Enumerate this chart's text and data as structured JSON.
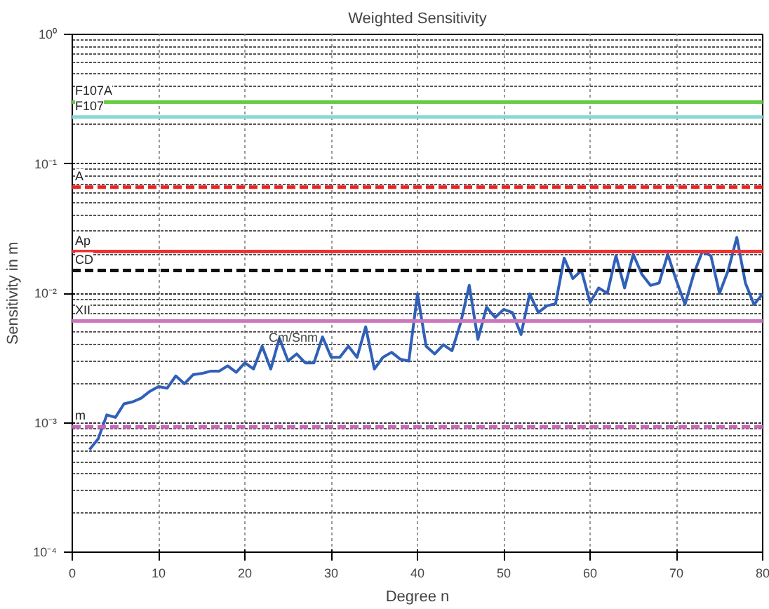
{
  "chart_data": {
    "type": "line",
    "title": "Weighted Sensitivity",
    "xlabel": "Degree n",
    "ylabel": "Sensitivity in m",
    "log": "y",
    "grid": true,
    "xlim": [
      0,
      80
    ],
    "xticks": [
      0,
      10,
      20,
      30,
      40,
      50,
      60,
      70,
      80
    ],
    "ylim": [
      0.0001,
      1
    ],
    "yticks": [
      {
        "value": 0.0001,
        "label": "10⁻⁴"
      },
      {
        "value": 0.001,
        "label": "10⁻³"
      },
      {
        "value": 0.01,
        "label": "10⁻²"
      },
      {
        "value": 0.1,
        "label": "10⁻¹"
      },
      {
        "value": 1,
        "label": "10⁰"
      }
    ],
    "x": [
      2,
      3,
      4,
      5,
      6,
      7,
      8,
      9,
      10,
      11,
      12,
      13,
      14,
      15,
      16,
      17,
      18,
      19,
      20,
      21,
      22,
      23,
      24,
      25,
      26,
      27,
      28,
      29,
      30,
      31,
      32,
      33,
      34,
      35,
      36,
      37,
      38,
      39,
      40,
      41,
      42,
      43,
      44,
      45,
      46,
      47,
      48,
      49,
      50,
      51,
      52,
      53,
      54,
      55,
      56,
      57,
      58,
      59,
      60,
      61,
      62,
      63,
      64,
      65,
      66,
      67,
      68,
      69,
      70,
      71,
      72,
      73,
      74,
      75,
      76,
      77,
      78,
      79,
      80
    ],
    "series": [
      {
        "color": "#3060b8",
        "values": [
          0.00062,
          0.00075,
          0.00115,
          0.0011,
          0.0014,
          0.00145,
          0.00155,
          0.00175,
          0.0019,
          0.00185,
          0.0023,
          0.002,
          0.00235,
          0.0024,
          0.0025,
          0.0025,
          0.00275,
          0.00245,
          0.0029,
          0.0026,
          0.0039,
          0.0026,
          0.0045,
          0.003,
          0.0034,
          0.0029,
          0.0029,
          0.0046,
          0.0032,
          0.0032,
          0.0039,
          0.0032,
          0.0055,
          0.0026,
          0.0032,
          0.0035,
          0.0031,
          0.003,
          0.0099,
          0.0039,
          0.0034,
          0.004,
          0.0036,
          0.0059,
          0.0115,
          0.0044,
          0.0078,
          0.0065,
          0.0075,
          0.0071,
          0.0048,
          0.0099,
          0.0071,
          0.008,
          0.0083,
          0.0187,
          0.013,
          0.015,
          0.0085,
          0.011,
          0.01,
          0.0195,
          0.011,
          0.02,
          0.014,
          0.0115,
          0.012,
          0.02,
          0.0125,
          0.0082,
          0.014,
          0.021,
          0.0195,
          0.01,
          0.015,
          0.027,
          0.012,
          0.0082,
          0.0099
        ]
      }
    ],
    "ref_lines": [
      {
        "axis": "y",
        "value": 0.3,
        "label": "F107A",
        "color": "#66cc44",
        "line_style": "solid"
      },
      {
        "axis": "y",
        "value": 0.23,
        "label": "F107",
        "color": "#88d8d8",
        "line_style": "solid"
      },
      {
        "axis": "y",
        "value": 0.066,
        "label": "A",
        "color": "#ee2222",
        "line_style": "dashed"
      },
      {
        "axis": "y",
        "value": 0.021,
        "label": "Ap",
        "color": "#ee3333",
        "line_style": "solid"
      },
      {
        "axis": "y",
        "value": 0.015,
        "label": "CD",
        "color": "#111111",
        "line_style": "dashed"
      },
      {
        "axis": "y",
        "value": 0.0061,
        "label": "XII",
        "color": "#cc77bb",
        "line_style": "solid"
      },
      {
        "axis": "y",
        "value": 0.00093,
        "label": "m",
        "color": "#cc66bb",
        "line_style": "dashed"
      }
    ],
    "annotations": [
      "Cm/Snm"
    ]
  }
}
